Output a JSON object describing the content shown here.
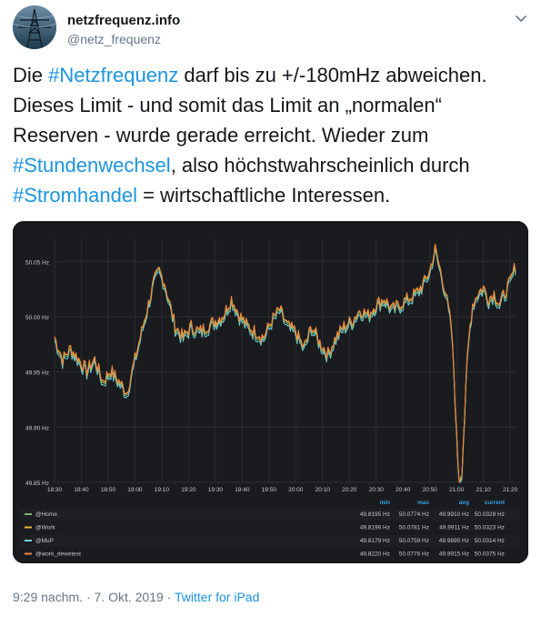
{
  "author": {
    "display_name": "netzfrequenz.info",
    "handle": "@netz_frequenz"
  },
  "tweet": {
    "segments": [
      {
        "text": "Die ",
        "tag": false
      },
      {
        "text": "#Netzfrequenz",
        "tag": true
      },
      {
        "text": " darf bis zu +/-180mHz abweichen. Dieses Limit - und somit das Limit an „normalen“ Reserven - wurde gerade erreicht. Wieder zum ",
        "tag": false
      },
      {
        "text": "#Stundenwechsel",
        "tag": true
      },
      {
        "text": ", also höchstwahrscheinlich durch ",
        "tag": false
      },
      {
        "text": "#Stromhandel",
        "tag": true
      },
      {
        "text": " = wirtschaftliche Interessen.",
        "tag": false
      }
    ],
    "time": "9:29 nachm.",
    "separator": " · ",
    "date": "7. Okt. 2019",
    "source": "Twitter for iPad"
  },
  "colors": {
    "link": "#1b95e0",
    "panel_bg": "#161719",
    "series": [
      "#7eb26d",
      "#eab839",
      "#6ed0e0",
      "#ef843c"
    ]
  },
  "icons": {
    "caret": "chevron-down-icon",
    "avatar": "power-pylon-avatar"
  },
  "chart_data": {
    "type": "line",
    "ylim": [
      49.85,
      50.07
    ],
    "yticks": [
      "50.05 Hz",
      "50.00 Hz",
      "49.95 Hz",
      "49.90 Hz",
      "49.85 Hz"
    ],
    "ytick_values": [
      50.05,
      50.0,
      49.95,
      49.9,
      49.85
    ],
    "xticks": [
      "18:30",
      "18:40",
      "18:50",
      "19:00",
      "19:10",
      "19:20",
      "19:30",
      "19:40",
      "19:50",
      "20:00",
      "20:10",
      "20:20",
      "20:30",
      "20:40",
      "20:50",
      "21:00",
      "21:10",
      "21:20"
    ],
    "x_minutes": [
      0,
      10,
      20,
      30,
      40,
      50,
      60,
      70,
      80,
      90,
      100,
      110,
      120,
      130,
      140,
      150,
      160,
      170
    ],
    "grid": true,
    "legend_placement": "bottom-table",
    "legend_columns": [
      "min",
      "max",
      "avg",
      "current"
    ],
    "series": [
      {
        "name": "@Home",
        "min": "49.8195 Hz",
        "max": "50.0774 Hz",
        "avg": "49.9910 Hz",
        "current": "50.0328 Hz"
      },
      {
        "name": "@Work",
        "min": "49.8196 Hz",
        "max": "50.0781 Hz",
        "avg": "49.9911 Hz",
        "current": "50.0323 Hz"
      },
      {
        "name": "@MuP",
        "min": "49.8179 Hz",
        "max": "50.0759 Hz",
        "avg": "49.9895 Hz",
        "current": "50.0314 Hz"
      },
      {
        "name": "@work_dewetest",
        "min": "49.8220 Hz",
        "max": "50.0776 Hz",
        "avg": "49.9915 Hz",
        "current": "50.0375 Hz"
      }
    ],
    "trace": {
      "x": [
        0,
        3,
        6,
        9,
        12,
        15,
        18,
        21,
        24,
        27,
        30,
        33,
        35,
        37,
        39,
        41,
        43,
        45,
        48,
        51,
        54,
        57,
        60,
        63,
        66,
        69,
        72,
        75,
        78,
        81,
        84,
        87,
        90,
        93,
        96,
        99,
        102,
        105,
        108,
        111,
        114,
        117,
        120,
        123,
        126,
        129,
        132,
        135,
        138,
        140,
        142,
        144,
        146,
        148,
        149,
        150,
        151,
        152,
        153,
        154,
        155,
        156,
        158,
        160,
        162,
        164,
        166,
        168,
        170,
        172
      ],
      "y": [
        49.98,
        49.96,
        49.97,
        49.96,
        49.95,
        49.96,
        49.94,
        49.95,
        49.94,
        49.93,
        49.96,
        49.99,
        50.01,
        50.03,
        50.04,
        50.03,
        50.01,
        49.99,
        49.98,
        49.99,
        49.985,
        49.99,
        49.995,
        50.0,
        50.015,
        50.0,
        49.99,
        49.985,
        49.98,
        49.995,
        50.005,
        49.99,
        49.985,
        49.97,
        49.99,
        49.975,
        49.965,
        49.98,
        49.99,
        49.995,
        50.005,
        50.0,
        50.01,
        50.015,
        50.005,
        50.01,
        50.015,
        50.02,
        50.03,
        50.04,
        50.06,
        50.04,
        50.02,
        49.99,
        49.95,
        49.89,
        49.85,
        49.86,
        49.91,
        49.96,
        49.99,
        50.01,
        50.02,
        50.025,
        50.015,
        50.02,
        50.01,
        50.02,
        50.03,
        50.045
      ]
    }
  }
}
